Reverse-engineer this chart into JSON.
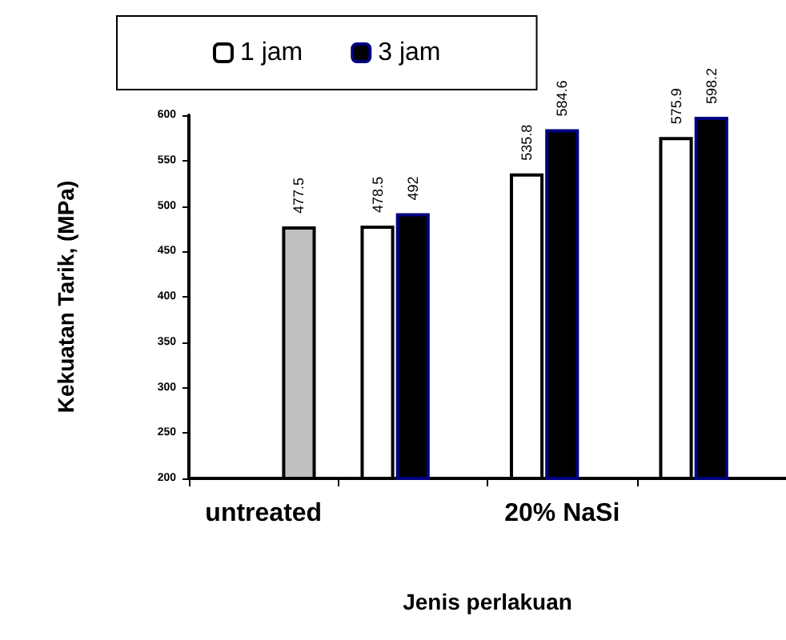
{
  "chart_data": {
    "type": "bar",
    "xlabel": "Jenis perlakuan",
    "ylabel": "Kekuatan Tarik, (MPa)",
    "categories": [
      "untreated",
      null,
      "20% NaSi",
      null
    ],
    "series": [
      {
        "name": "1 jam",
        "color": "#ffffff",
        "values": [
          null,
          478.5,
          535.8,
          575.9
        ]
      },
      {
        "name": "3 jam",
        "color": "#000000",
        "values": [
          null,
          492,
          584.6,
          598.2
        ]
      },
      {
        "color": "#c0c0c0",
        "values": [
          477.5,
          null,
          null,
          null
        ]
      }
    ],
    "ylim": [
      200,
      600
    ],
    "yticks": [
      200,
      250,
      300,
      350,
      400,
      450,
      500,
      550,
      600
    ],
    "data_labels": true,
    "grid": false,
    "legend": "top left"
  }
}
